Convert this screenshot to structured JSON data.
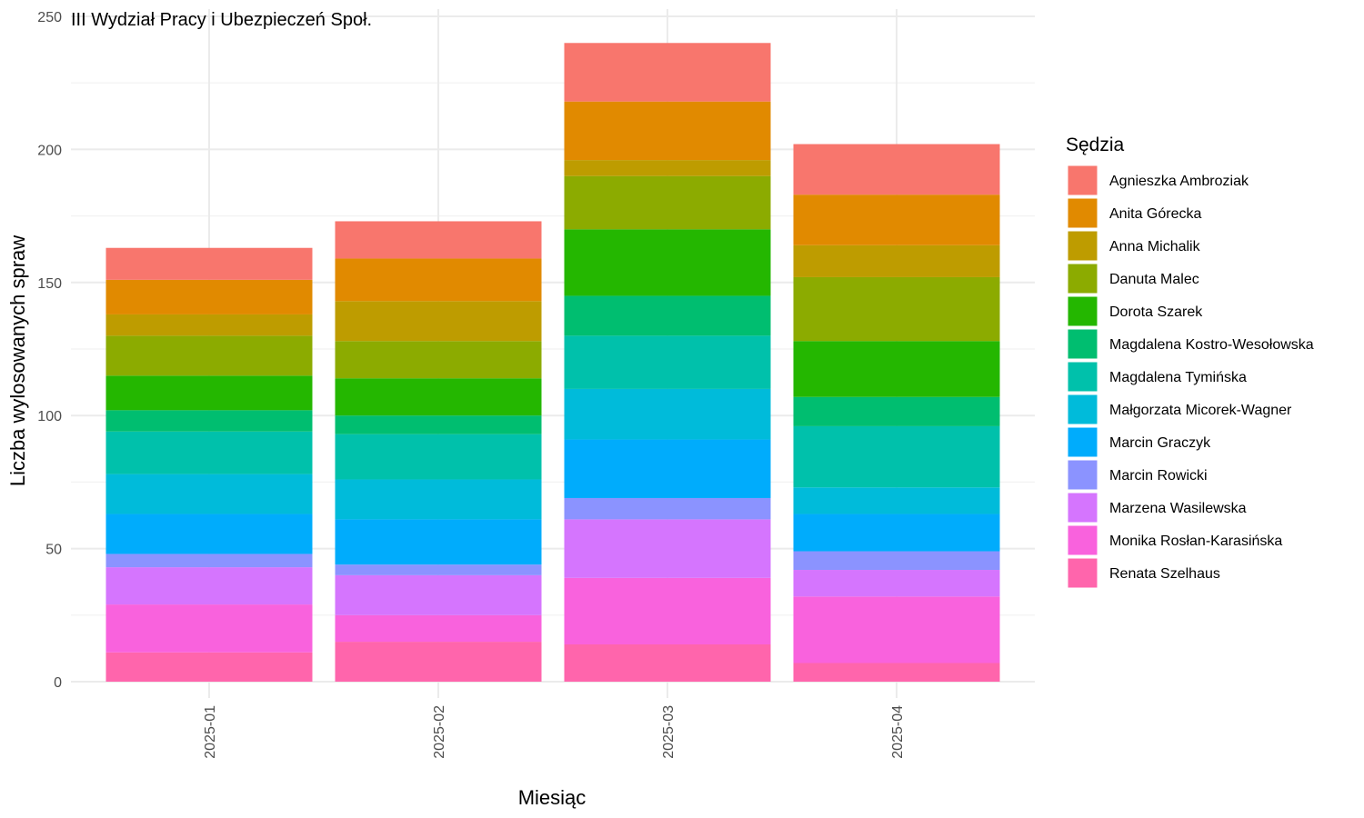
{
  "chart_data": {
    "type": "bar",
    "stacked": true,
    "title": "III Wydział Pracy i Ubezpieczeń Społ.",
    "xlabel": "Miesiąc",
    "ylabel": "Liczba wylosowanych spraw",
    "ylim": [
      0,
      250
    ],
    "yticks": [
      "0",
      "50",
      "100",
      "150",
      "200",
      "250"
    ],
    "categories": [
      "2025-01",
      "2025-02",
      "2025-03",
      "2025-04"
    ],
    "grid": true,
    "legend_title": "Sędzia",
    "legend_position": "right",
    "series": [
      {
        "name": "Agnieszka Ambroziak",
        "color": "#F8766D",
        "values": [
          12,
          14,
          22,
          19
        ]
      },
      {
        "name": "Anita Górecka",
        "color": "#E18A00",
        "values": [
          13,
          16,
          22,
          19
        ]
      },
      {
        "name": "Anna Michalik",
        "color": "#BE9C00",
        "values": [
          8,
          15,
          6,
          12
        ]
      },
      {
        "name": "Danuta Malec",
        "color": "#8CAB00",
        "values": [
          15,
          14,
          20,
          24
        ]
      },
      {
        "name": "Dorota Szarek",
        "color": "#24B700",
        "values": [
          13,
          14,
          25,
          21
        ]
      },
      {
        "name": "Magdalena Kostro-Wesołowska",
        "color": "#00BE70",
        "values": [
          8,
          7,
          15,
          11
        ]
      },
      {
        "name": "Magdalena Tymińska",
        "color": "#00C1AB",
        "values": [
          16,
          17,
          20,
          23
        ]
      },
      {
        "name": "Małgorzata Micorek-Wagner",
        "color": "#00BBDA",
        "values": [
          15,
          15,
          19,
          10
        ]
      },
      {
        "name": "Marcin Graczyk",
        "color": "#00ACFC",
        "values": [
          15,
          17,
          22,
          14
        ]
      },
      {
        "name": "Marcin Rowicki",
        "color": "#8B93FF",
        "values": [
          5,
          4,
          8,
          7
        ]
      },
      {
        "name": "Marzena Wasilewska",
        "color": "#D575FE",
        "values": [
          14,
          15,
          22,
          10
        ]
      },
      {
        "name": "Monika Rosłan-Karasińska",
        "color": "#F962DD",
        "values": [
          18,
          10,
          25,
          25
        ]
      },
      {
        "name": "Renata Szelhaus",
        "color": "#FF65AC",
        "values": [
          11,
          15,
          14,
          7
        ]
      }
    ]
  }
}
